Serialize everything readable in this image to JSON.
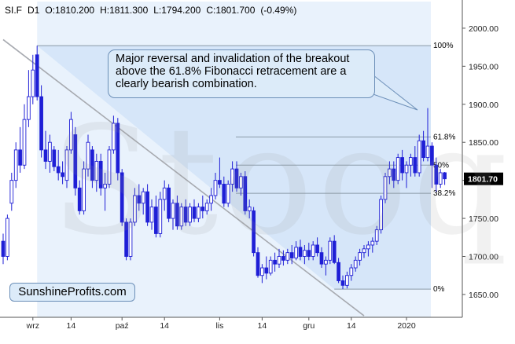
{
  "header": {
    "symbol": "SI.F",
    "interval": "D1",
    "open": "O:1810.200",
    "high": "H:1811.300",
    "low": "L:1794.200",
    "close": "C:1801.700",
    "change": "(-0.49%)"
  },
  "annotation": {
    "text": "Major reversal and invalidation of the breakout above the 61.8% Fibonacci retracement are a clearly bearish combination."
  },
  "brand": {
    "text": "SunshineProfits.com"
  },
  "watermark": {
    "text": "Stooq"
  },
  "colors": {
    "up_candle": "#ffffff",
    "down_candle": "#1f1fd6",
    "candle_outline": "#1f1fd6",
    "shade": "#cfe2f8",
    "axis": "#555555",
    "last_price_box": "#000000"
  },
  "chart_data": {
    "type": "candlestick",
    "title": "",
    "ylim": [
      1620,
      2035
    ],
    "yticks": [
      1650,
      1700,
      1750,
      1800,
      1850,
      1900,
      1950,
      2000
    ],
    "ytick_labels": [
      "1650.00",
      "1700.00",
      "1750.00",
      "1800.00",
      "1850.00",
      "1900.00",
      "1950.00",
      "2000.00"
    ],
    "xticks": [
      {
        "label": "wrz",
        "index": 7
      },
      {
        "label": "14",
        "index": 16
      },
      {
        "label": "paź",
        "index": 28
      },
      {
        "label": "14",
        "index": 38
      },
      {
        "label": "lis",
        "index": 51
      },
      {
        "label": "14",
        "index": 61
      },
      {
        "label": "gru",
        "index": 72
      },
      {
        "label": "14",
        "index": 82
      },
      {
        "label": "2020",
        "index": 95
      }
    ],
    "last_price": "1801.70",
    "fibonacci": [
      {
        "label": "100%",
        "value": 1977
      },
      {
        "label": "61.8%",
        "value": 1857
      },
      {
        "label": "50%",
        "value": 1820
      },
      {
        "label": "38.2%",
        "value": 1783
      },
      {
        "label": "0%",
        "value": 1657
      }
    ],
    "fib_start_index": 8,
    "fib_low_index": 78,
    "trendline": {
      "from": {
        "index": 0,
        "value": 1985
      },
      "to": {
        "index": 85,
        "value": 1622
      }
    },
    "candles": [
      {
        "o": 1720,
        "h": 1730,
        "l": 1690,
        "c": 1700
      },
      {
        "o": 1700,
        "h": 1755,
        "l": 1695,
        "c": 1750
      },
      {
        "o": 1770,
        "h": 1810,
        "l": 1760,
        "c": 1800
      },
      {
        "o": 1800,
        "h": 1850,
        "l": 1790,
        "c": 1840
      },
      {
        "o": 1840,
        "h": 1870,
        "l": 1810,
        "c": 1820
      },
      {
        "o": 1820,
        "h": 1900,
        "l": 1815,
        "c": 1880
      },
      {
        "o": 1880,
        "h": 1945,
        "l": 1870,
        "c": 1910
      },
      {
        "o": 1910,
        "h": 1965,
        "l": 1900,
        "c": 1945
      },
      {
        "o": 1965,
        "h": 1977,
        "l": 1905,
        "c": 1910
      },
      {
        "o": 1910,
        "h": 1925,
        "l": 1830,
        "c": 1840
      },
      {
        "o": 1840,
        "h": 1865,
        "l": 1815,
        "c": 1825
      },
      {
        "o": 1825,
        "h": 1860,
        "l": 1810,
        "c": 1850
      },
      {
        "o": 1840,
        "h": 1845,
        "l": 1812,
        "c": 1818
      },
      {
        "o": 1818,
        "h": 1840,
        "l": 1800,
        "c": 1810
      },
      {
        "o": 1810,
        "h": 1825,
        "l": 1795,
        "c": 1805
      },
      {
        "o": 1800,
        "h": 1845,
        "l": 1790,
        "c": 1840
      },
      {
        "o": 1840,
        "h": 1890,
        "l": 1835,
        "c": 1880
      },
      {
        "o": 1860,
        "h": 1870,
        "l": 1780,
        "c": 1790
      },
      {
        "o": 1790,
        "h": 1800,
        "l": 1755,
        "c": 1760
      },
      {
        "o": 1760,
        "h": 1825,
        "l": 1755,
        "c": 1815
      },
      {
        "o": 1815,
        "h": 1860,
        "l": 1805,
        "c": 1850
      },
      {
        "o": 1840,
        "h": 1845,
        "l": 1790,
        "c": 1800
      },
      {
        "o": 1800,
        "h": 1835,
        "l": 1785,
        "c": 1825
      },
      {
        "o": 1825,
        "h": 1835,
        "l": 1780,
        "c": 1790
      },
      {
        "o": 1790,
        "h": 1810,
        "l": 1760,
        "c": 1795
      },
      {
        "o": 1795,
        "h": 1845,
        "l": 1790,
        "c": 1840
      },
      {
        "o": 1840,
        "h": 1885,
        "l": 1835,
        "c": 1875
      },
      {
        "o": 1875,
        "h": 1882,
        "l": 1800,
        "c": 1810
      },
      {
        "o": 1810,
        "h": 1815,
        "l": 1740,
        "c": 1745
      },
      {
        "o": 1745,
        "h": 1750,
        "l": 1695,
        "c": 1700
      },
      {
        "o": 1700,
        "h": 1750,
        "l": 1695,
        "c": 1745
      },
      {
        "o": 1745,
        "h": 1790,
        "l": 1740,
        "c": 1780
      },
      {
        "o": 1780,
        "h": 1795,
        "l": 1760,
        "c": 1770
      },
      {
        "o": 1770,
        "h": 1790,
        "l": 1755,
        "c": 1785
      },
      {
        "o": 1785,
        "h": 1795,
        "l": 1740,
        "c": 1745
      },
      {
        "o": 1745,
        "h": 1775,
        "l": 1735,
        "c": 1765
      },
      {
        "o": 1765,
        "h": 1780,
        "l": 1725,
        "c": 1730
      },
      {
        "o": 1730,
        "h": 1785,
        "l": 1725,
        "c": 1775
      },
      {
        "o": 1775,
        "h": 1800,
        "l": 1760,
        "c": 1790
      },
      {
        "o": 1790,
        "h": 1795,
        "l": 1745,
        "c": 1750
      },
      {
        "o": 1750,
        "h": 1775,
        "l": 1735,
        "c": 1770
      },
      {
        "o": 1770,
        "h": 1780,
        "l": 1735,
        "c": 1740
      },
      {
        "o": 1740,
        "h": 1770,
        "l": 1735,
        "c": 1765
      },
      {
        "o": 1765,
        "h": 1775,
        "l": 1740,
        "c": 1745
      },
      {
        "o": 1745,
        "h": 1770,
        "l": 1740,
        "c": 1765
      },
      {
        "o": 1765,
        "h": 1775,
        "l": 1745,
        "c": 1750
      },
      {
        "o": 1750,
        "h": 1770,
        "l": 1745,
        "c": 1765
      },
      {
        "o": 1765,
        "h": 1780,
        "l": 1750,
        "c": 1760
      },
      {
        "o": 1760,
        "h": 1775,
        "l": 1755,
        "c": 1770
      },
      {
        "o": 1770,
        "h": 1790,
        "l": 1760,
        "c": 1780
      },
      {
        "o": 1780,
        "h": 1810,
        "l": 1775,
        "c": 1800
      },
      {
        "o": 1800,
        "h": 1830,
        "l": 1790,
        "c": 1795
      },
      {
        "o": 1795,
        "h": 1805,
        "l": 1765,
        "c": 1770
      },
      {
        "o": 1770,
        "h": 1800,
        "l": 1765,
        "c": 1795
      },
      {
        "o": 1795,
        "h": 1825,
        "l": 1785,
        "c": 1815
      },
      {
        "o": 1815,
        "h": 1825,
        "l": 1785,
        "c": 1790
      },
      {
        "o": 1790,
        "h": 1810,
        "l": 1780,
        "c": 1805
      },
      {
        "o": 1805,
        "h": 1812,
        "l": 1755,
        "c": 1760
      },
      {
        "o": 1760,
        "h": 1775,
        "l": 1750,
        "c": 1765
      },
      {
        "o": 1760,
        "h": 1765,
        "l": 1700,
        "c": 1705
      },
      {
        "o": 1705,
        "h": 1712,
        "l": 1672,
        "c": 1675
      },
      {
        "o": 1675,
        "h": 1690,
        "l": 1665,
        "c": 1685
      },
      {
        "o": 1685,
        "h": 1700,
        "l": 1670,
        "c": 1678
      },
      {
        "o": 1678,
        "h": 1700,
        "l": 1675,
        "c": 1695
      },
      {
        "o": 1695,
        "h": 1705,
        "l": 1680,
        "c": 1690
      },
      {
        "o": 1690,
        "h": 1710,
        "l": 1685,
        "c": 1700
      },
      {
        "o": 1700,
        "h": 1708,
        "l": 1688,
        "c": 1695
      },
      {
        "o": 1695,
        "h": 1710,
        "l": 1690,
        "c": 1705
      },
      {
        "o": 1705,
        "h": 1715,
        "l": 1690,
        "c": 1698
      },
      {
        "o": 1698,
        "h": 1720,
        "l": 1695,
        "c": 1712
      },
      {
        "o": 1712,
        "h": 1722,
        "l": 1695,
        "c": 1700
      },
      {
        "o": 1700,
        "h": 1715,
        "l": 1690,
        "c": 1708
      },
      {
        "o": 1708,
        "h": 1718,
        "l": 1695,
        "c": 1700
      },
      {
        "o": 1700,
        "h": 1720,
        "l": 1695,
        "c": 1715
      },
      {
        "o": 1715,
        "h": 1725,
        "l": 1700,
        "c": 1705
      },
      {
        "o": 1705,
        "h": 1712,
        "l": 1685,
        "c": 1690
      },
      {
        "o": 1690,
        "h": 1700,
        "l": 1675,
        "c": 1695
      },
      {
        "o": 1695,
        "h": 1725,
        "l": 1690,
        "c": 1720
      },
      {
        "o": 1720,
        "h": 1728,
        "l": 1690,
        "c": 1692
      },
      {
        "o": 1692,
        "h": 1698,
        "l": 1665,
        "c": 1668
      },
      {
        "o": 1668,
        "h": 1675,
        "l": 1657,
        "c": 1662
      },
      {
        "o": 1662,
        "h": 1680,
        "l": 1658,
        "c": 1675
      },
      {
        "o": 1675,
        "h": 1690,
        "l": 1668,
        "c": 1685
      },
      {
        "o": 1685,
        "h": 1700,
        "l": 1680,
        "c": 1695
      },
      {
        "o": 1695,
        "h": 1710,
        "l": 1688,
        "c": 1705
      },
      {
        "o": 1705,
        "h": 1715,
        "l": 1698,
        "c": 1710
      },
      {
        "o": 1710,
        "h": 1720,
        "l": 1700,
        "c": 1715
      },
      {
        "o": 1715,
        "h": 1725,
        "l": 1705,
        "c": 1720
      },
      {
        "o": 1720,
        "h": 1740,
        "l": 1715,
        "c": 1735
      },
      {
        "o": 1735,
        "h": 1780,
        "l": 1730,
        "c": 1775
      },
      {
        "o": 1775,
        "h": 1810,
        "l": 1770,
        "c": 1805
      },
      {
        "o": 1805,
        "h": 1825,
        "l": 1795,
        "c": 1815
      },
      {
        "o": 1815,
        "h": 1825,
        "l": 1790,
        "c": 1800
      },
      {
        "o": 1800,
        "h": 1835,
        "l": 1795,
        "c": 1830
      },
      {
        "o": 1830,
        "h": 1840,
        "l": 1800,
        "c": 1810
      },
      {
        "o": 1810,
        "h": 1825,
        "l": 1790,
        "c": 1820
      },
      {
        "o": 1820,
        "h": 1835,
        "l": 1805,
        "c": 1830
      },
      {
        "o": 1830,
        "h": 1845,
        "l": 1805,
        "c": 1810
      },
      {
        "o": 1810,
        "h": 1860,
        "l": 1805,
        "c": 1852
      },
      {
        "o": 1852,
        "h": 1865,
        "l": 1825,
        "c": 1830
      },
      {
        "o": 1830,
        "h": 1895,
        "l": 1825,
        "c": 1845
      },
      {
        "o": 1845,
        "h": 1850,
        "l": 1790,
        "c": 1820
      },
      {
        "o": 1820,
        "h": 1830,
        "l": 1785,
        "c": 1795
      },
      {
        "o": 1795,
        "h": 1815,
        "l": 1790,
        "c": 1810
      },
      {
        "o": 1810,
        "h": 1811,
        "l": 1794,
        "c": 1802
      }
    ]
  }
}
